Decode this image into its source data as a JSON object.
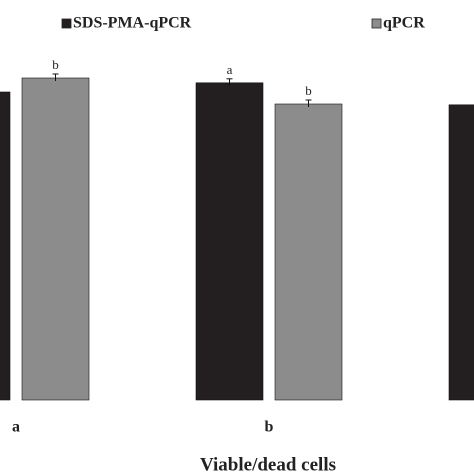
{
  "chart_data": {
    "type": "bar",
    "x_label": "Viable/dead cells",
    "categories": [
      "a",
      "b",
      null
    ],
    "series": [
      {
        "name": "SDS-PMA-qPCR",
        "color": "#231f20",
        "values": [
          7.7,
          7.93,
          7.38
        ],
        "letters": [
          null,
          "a",
          null
        ]
      },
      {
        "name": "qPCR",
        "color": "#8c8c8c",
        "values": [
          8.05,
          7.4,
          null
        ],
        "letters": [
          "b",
          "b",
          null
        ]
      }
    ],
    "ylim": [
      0,
      10
    ]
  }
}
